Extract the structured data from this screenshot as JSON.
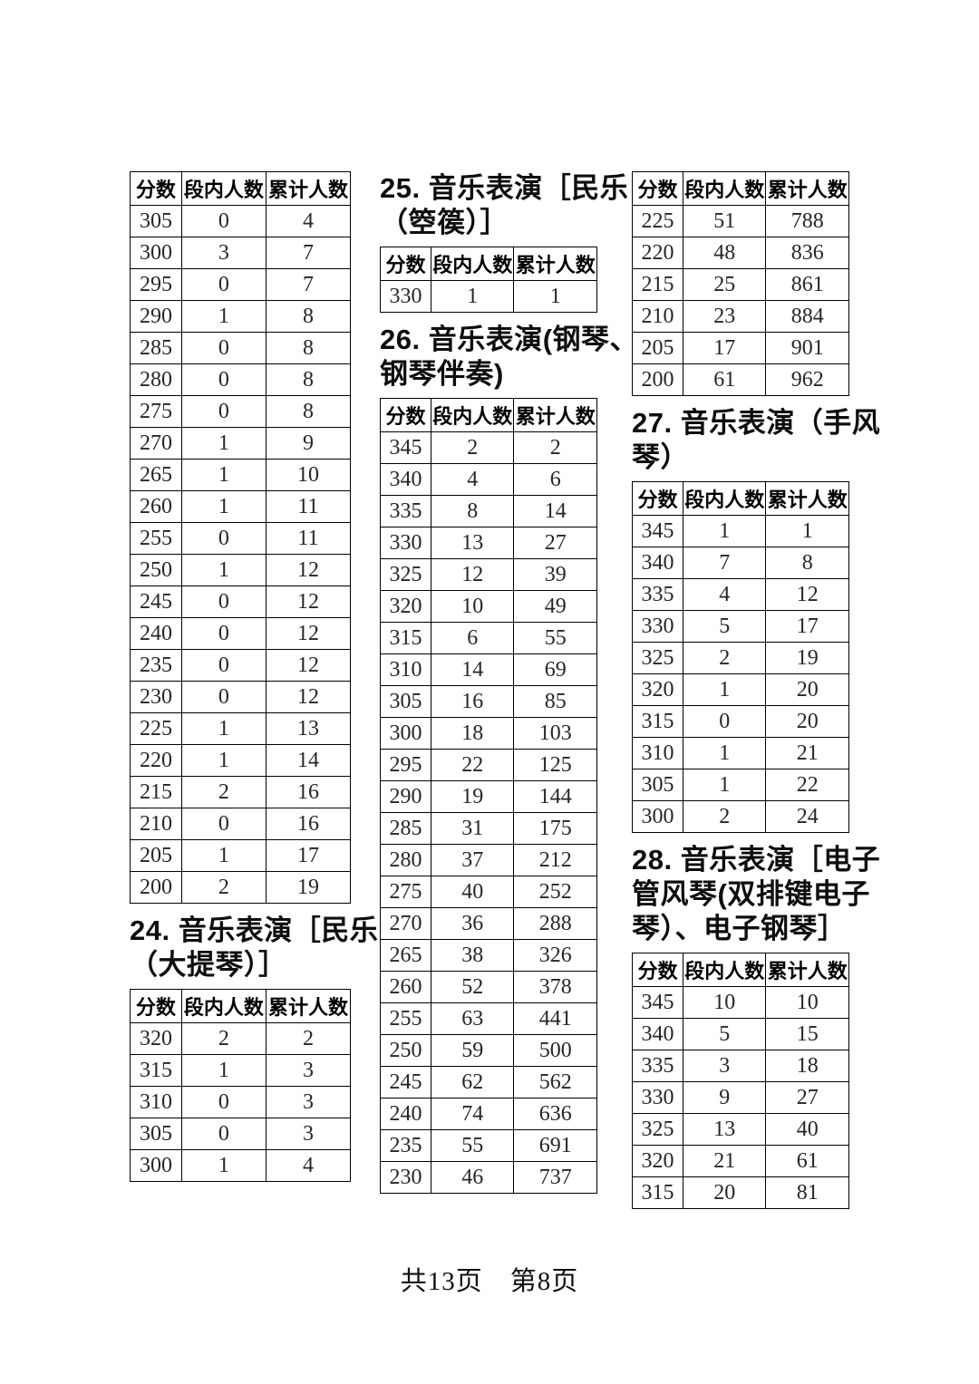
{
  "header_labels": [
    "分数",
    "段内人数",
    "累计人数"
  ],
  "footer_text": "共13页　第8页",
  "titles": {
    "t24": [
      "24. 音乐表演［民乐",
      "（大提琴）］"
    ],
    "t25": [
      "25. 音乐表演［民乐",
      "（箜篌）］"
    ],
    "t26": [
      "26. 音乐表演(钢琴、",
      "钢琴伴奏)"
    ],
    "t27": [
      "27. 音乐表演（手风",
      "琴）"
    ],
    "t28": [
      "28. 音乐表演［电子",
      "管风琴(双排键电子",
      "琴）、电子钢琴］"
    ]
  },
  "tables": {
    "left_cont": [
      [
        305,
        0,
        4
      ],
      [
        300,
        3,
        7
      ],
      [
        295,
        0,
        7
      ],
      [
        290,
        1,
        8
      ],
      [
        285,
        0,
        8
      ],
      [
        280,
        0,
        8
      ],
      [
        275,
        0,
        8
      ],
      [
        270,
        1,
        9
      ],
      [
        265,
        1,
        10
      ],
      [
        260,
        1,
        11
      ],
      [
        255,
        0,
        11
      ],
      [
        250,
        1,
        12
      ],
      [
        245,
        0,
        12
      ],
      [
        240,
        0,
        12
      ],
      [
        235,
        0,
        12
      ],
      [
        230,
        0,
        12
      ],
      [
        225,
        1,
        13
      ],
      [
        220,
        1,
        14
      ],
      [
        215,
        2,
        16
      ],
      [
        210,
        0,
        16
      ],
      [
        205,
        1,
        17
      ],
      [
        200,
        2,
        19
      ]
    ],
    "t24": [
      [
        320,
        2,
        2
      ],
      [
        315,
        1,
        3
      ],
      [
        310,
        0,
        3
      ],
      [
        305,
        0,
        3
      ],
      [
        300,
        1,
        4
      ]
    ],
    "t25": [
      [
        330,
        1,
        1
      ]
    ],
    "t26": [
      [
        345,
        2,
        2
      ],
      [
        340,
        4,
        6
      ],
      [
        335,
        8,
        14
      ],
      [
        330,
        13,
        27
      ],
      [
        325,
        12,
        39
      ],
      [
        320,
        10,
        49
      ],
      [
        315,
        6,
        55
      ],
      [
        310,
        14,
        69
      ],
      [
        305,
        16,
        85
      ],
      [
        300,
        18,
        103
      ],
      [
        295,
        22,
        125
      ],
      [
        290,
        19,
        144
      ],
      [
        285,
        31,
        175
      ],
      [
        280,
        37,
        212
      ],
      [
        275,
        40,
        252
      ],
      [
        270,
        36,
        288
      ],
      [
        265,
        38,
        326
      ],
      [
        260,
        52,
        378
      ],
      [
        255,
        63,
        441
      ],
      [
        250,
        59,
        500
      ],
      [
        245,
        62,
        562
      ],
      [
        240,
        74,
        636
      ],
      [
        235,
        55,
        691
      ],
      [
        230,
        46,
        737
      ]
    ],
    "t26_cont": [
      [
        225,
        51,
        788
      ],
      [
        220,
        48,
        836
      ],
      [
        215,
        25,
        861
      ],
      [
        210,
        23,
        884
      ],
      [
        205,
        17,
        901
      ],
      [
        200,
        61,
        962
      ]
    ],
    "t27": [
      [
        345,
        1,
        1
      ],
      [
        340,
        7,
        8
      ],
      [
        335,
        4,
        12
      ],
      [
        330,
        5,
        17
      ],
      [
        325,
        2,
        19
      ],
      [
        320,
        1,
        20
      ],
      [
        315,
        0,
        20
      ],
      [
        310,
        1,
        21
      ],
      [
        305,
        1,
        22
      ],
      [
        300,
        2,
        24
      ]
    ],
    "t28": [
      [
        345,
        10,
        10
      ],
      [
        340,
        5,
        15
      ],
      [
        335,
        3,
        18
      ],
      [
        330,
        9,
        27
      ],
      [
        325,
        13,
        40
      ],
      [
        320,
        21,
        61
      ],
      [
        315,
        20,
        81
      ]
    ]
  }
}
